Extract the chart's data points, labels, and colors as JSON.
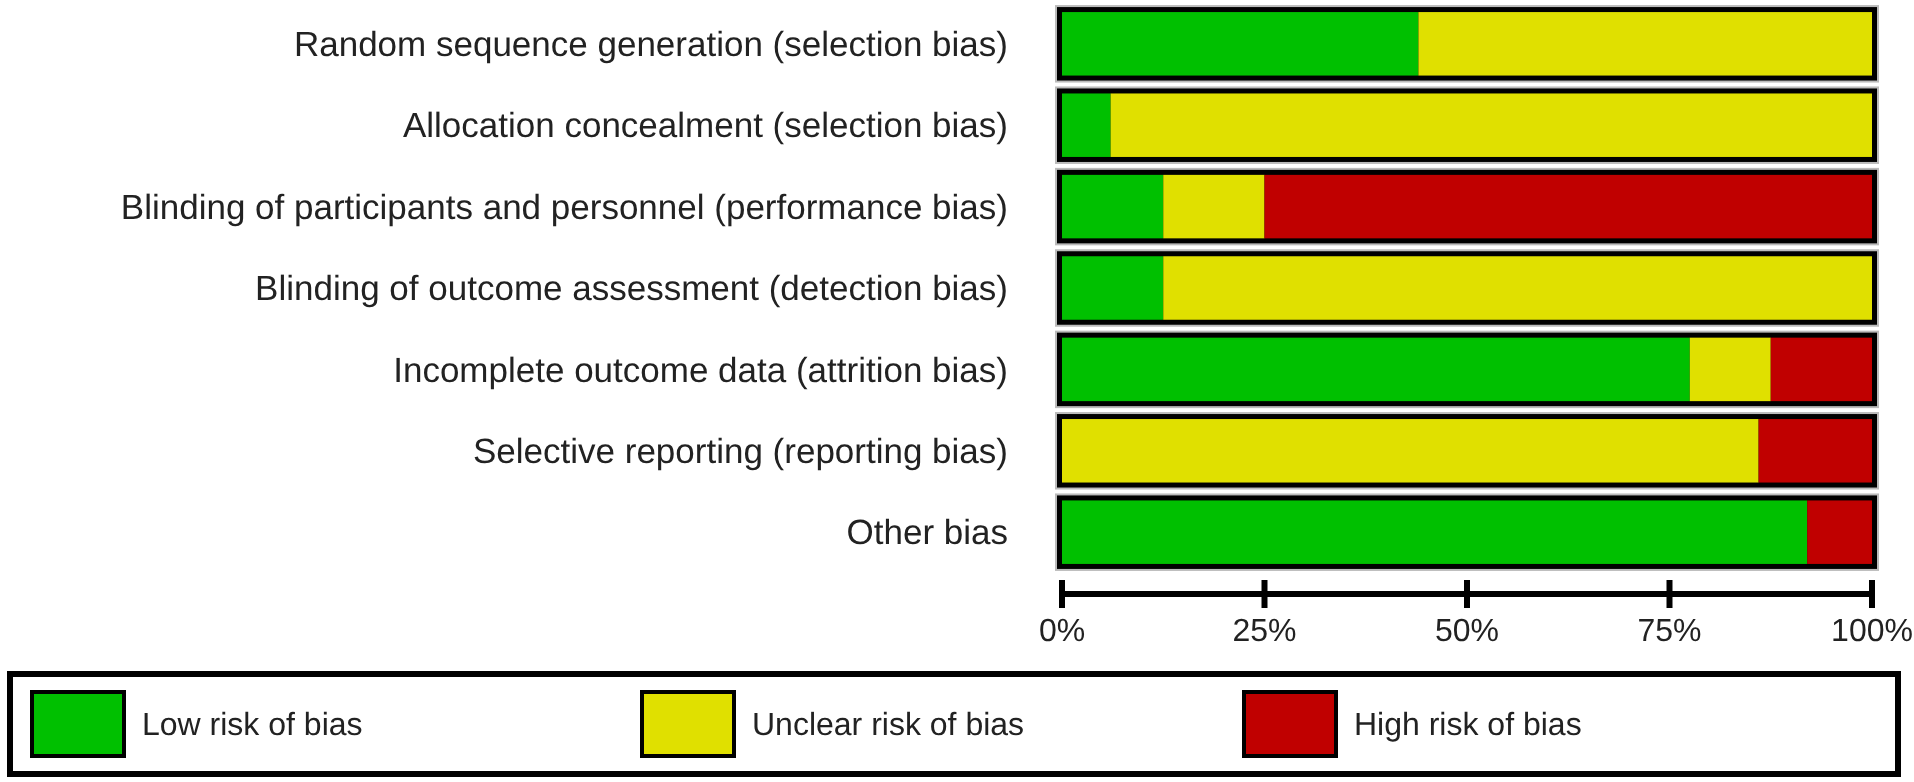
{
  "chart_data": {
    "type": "bar",
    "orientation": "horizontal",
    "stacked": true,
    "categories": [
      "Random sequence generation (selection bias)",
      "Allocation concealment (selection bias)",
      "Blinding of participants and personnel (performance bias)",
      "Blinding of outcome assessment (detection bias)",
      "Incomplete outcome data (attrition bias)",
      "Selective reporting (reporting bias)",
      "Other bias"
    ],
    "series": [
      {
        "name": "Low risk of bias",
        "color": "#00c000",
        "values": [
          44,
          6,
          12.5,
          12.5,
          77.5,
          0,
          92
        ]
      },
      {
        "name": "Unclear risk of bias",
        "color": "#e0e000",
        "values": [
          56,
          94,
          12.5,
          87.5,
          10,
          86,
          0
        ]
      },
      {
        "name": "High risk of bias",
        "color": "#c00000",
        "values": [
          0,
          0,
          75,
          0,
          12.5,
          14,
          8
        ]
      }
    ],
    "xlim": [
      0,
      100
    ],
    "xticks": [
      {
        "value": 0,
        "label": "0%"
      },
      {
        "value": 25,
        "label": "25%"
      },
      {
        "value": 50,
        "label": "50%"
      },
      {
        "value": 75,
        "label": "75%"
      },
      {
        "value": 100,
        "label": "100%"
      }
    ],
    "grid": false,
    "legend": "bottom"
  }
}
